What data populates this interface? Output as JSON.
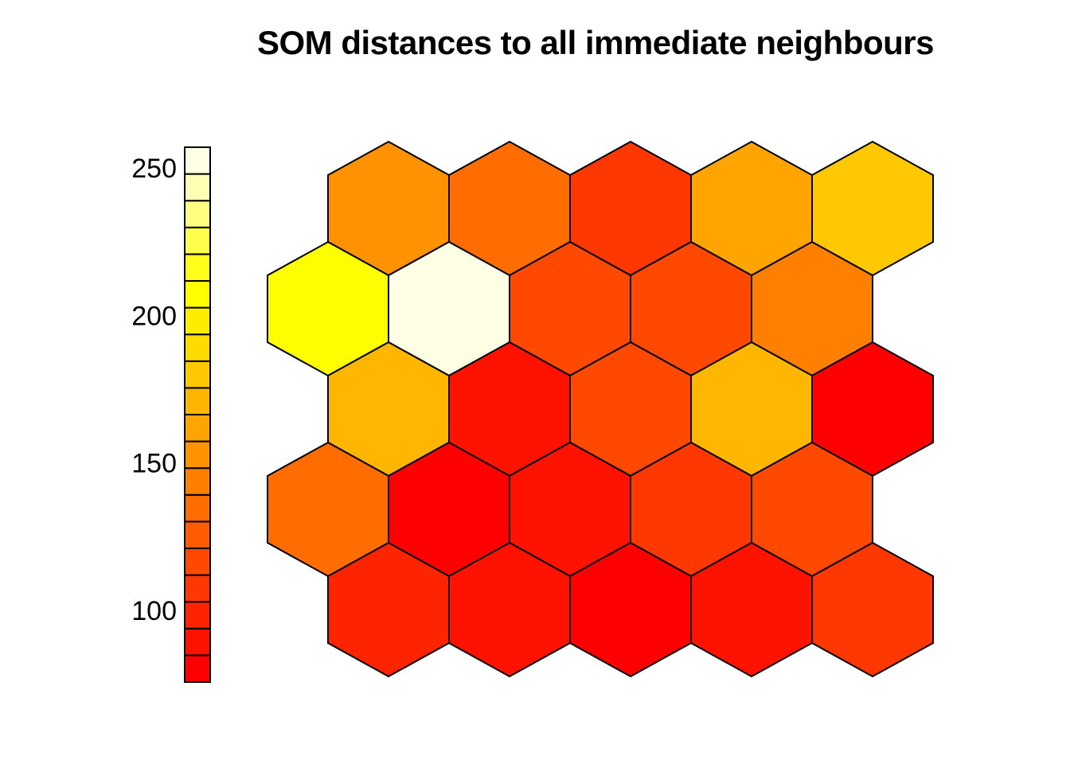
{
  "title": "SOM distances to all immediate neighbours",
  "chart_data": {
    "type": "heatmap",
    "subtype": "som-hexagonal-neighbour-distance-plot",
    "title": "SOM distances to all immediate neighbours",
    "grid": {
      "columns": 5,
      "rows": 5,
      "topology": "hexagonal-offset",
      "row_order": "top-to-bottom",
      "rows_offset_left_from_top": [
        2,
        4
      ]
    },
    "legend": {
      "position": "left",
      "orientation": "vertical",
      "segments": 20,
      "tick_values": [
        100,
        150,
        200,
        250
      ],
      "tick_labels": [
        "100",
        "150",
        "200",
        "250"
      ],
      "value_range_approx": [
        76,
        257
      ],
      "palette_name": "heat.colors(20)",
      "palette_bottom_to_top": [
        "#FF0000",
        "#FF1200",
        "#FF2400",
        "#FF3700",
        "#FF4900",
        "#FF5B00",
        "#FF6D00",
        "#FF8000",
        "#FF9200",
        "#FFA400",
        "#FFB600",
        "#FFC800",
        "#FFDB00",
        "#FFED00",
        "#FFFF00",
        "#FFFF1A",
        "#FFFF4D",
        "#FFFF80",
        "#FFFFB3",
        "#FFFFE6"
      ]
    },
    "cells": [
      {
        "row": 1,
        "col": 1,
        "color": "#FF9200",
        "approx_value": 153
      },
      {
        "row": 1,
        "col": 2,
        "color": "#FF6D00",
        "approx_value": 135
      },
      {
        "row": 1,
        "col": 3,
        "color": "#FF3700",
        "approx_value": 108
      },
      {
        "row": 1,
        "col": 4,
        "color": "#FFA400",
        "approx_value": 162
      },
      {
        "row": 1,
        "col": 5,
        "color": "#FFC800",
        "approx_value": 180
      },
      {
        "row": 2,
        "col": 1,
        "color": "#FFFF00",
        "approx_value": 208
      },
      {
        "row": 2,
        "col": 2,
        "color": "#FFFFE6",
        "approx_value": 253
      },
      {
        "row": 2,
        "col": 3,
        "color": "#FF4900",
        "approx_value": 117
      },
      {
        "row": 2,
        "col": 4,
        "color": "#FF4900",
        "approx_value": 117
      },
      {
        "row": 2,
        "col": 5,
        "color": "#FF8000",
        "approx_value": 144
      },
      {
        "row": 3,
        "col": 1,
        "color": "#FFB600",
        "approx_value": 171
      },
      {
        "row": 3,
        "col": 2,
        "color": "#FF1200",
        "approx_value": 90
      },
      {
        "row": 3,
        "col": 3,
        "color": "#FF4900",
        "approx_value": 117
      },
      {
        "row": 3,
        "col": 4,
        "color": "#FFB600",
        "approx_value": 171
      },
      {
        "row": 3,
        "col": 5,
        "color": "#FF0000",
        "approx_value": 81
      },
      {
        "row": 4,
        "col": 1,
        "color": "#FF6D00",
        "approx_value": 135
      },
      {
        "row": 4,
        "col": 2,
        "color": "#FF0000",
        "approx_value": 81
      },
      {
        "row": 4,
        "col": 3,
        "color": "#FF1200",
        "approx_value": 90
      },
      {
        "row": 4,
        "col": 4,
        "color": "#FF3700",
        "approx_value": 108
      },
      {
        "row": 4,
        "col": 5,
        "color": "#FF4900",
        "approx_value": 117
      },
      {
        "row": 5,
        "col": 1,
        "color": "#FF2400",
        "approx_value": 99
      },
      {
        "row": 5,
        "col": 2,
        "color": "#FF1200",
        "approx_value": 90
      },
      {
        "row": 5,
        "col": 3,
        "color": "#FF0000",
        "approx_value": 81
      },
      {
        "row": 5,
        "col": 4,
        "color": "#FF1200",
        "approx_value": 90
      },
      {
        "row": 5,
        "col": 5,
        "color": "#FF3700",
        "approx_value": 108
      }
    ],
    "style": {
      "border_color": "#000000",
      "background_color": "#FFFFFF",
      "text_color": "#000000"
    }
  }
}
